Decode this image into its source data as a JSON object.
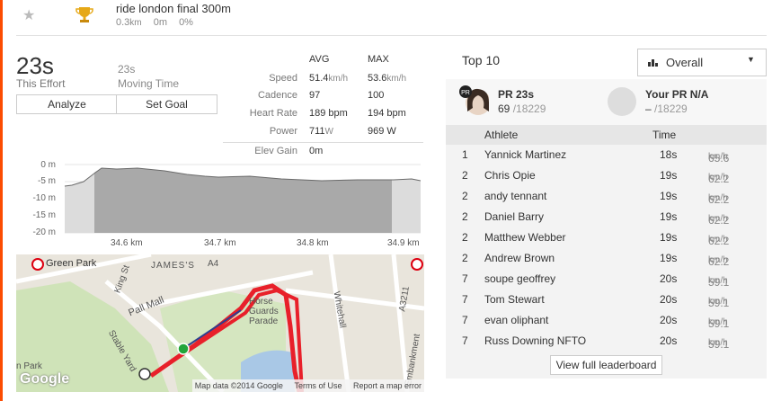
{
  "segment": {
    "title": "ride london final 300m",
    "distance_value": "0.3",
    "distance_unit": "km",
    "elevation_value": "0",
    "elevation_unit": "m",
    "grade": "0%"
  },
  "effort": {
    "time": "23s",
    "time_label": "This Effort",
    "moving_time": "23s",
    "moving_label": "Moving Time",
    "analyze_label": "Analyze",
    "set_goal_label": "Set Goal"
  },
  "stats": {
    "avg_header": "AVG",
    "max_header": "MAX",
    "rows": [
      {
        "label": "Speed",
        "avg": "51.4",
        "avg_unit": "km/h",
        "max": "53.6",
        "max_unit": "km/h"
      },
      {
        "label": "Cadence",
        "avg": "97",
        "avg_unit": "",
        "max": "100",
        "max_unit": ""
      },
      {
        "label": "Heart Rate",
        "avg": "189 bpm",
        "avg_unit": "",
        "max": "194 bpm",
        "max_unit": ""
      },
      {
        "label": "Power",
        "avg": "711",
        "avg_unit": "W",
        "max": "969 W",
        "max_unit": ""
      },
      {
        "label": "Elev Gain",
        "avg": "0m",
        "avg_unit": "",
        "max": "",
        "max_unit": ""
      }
    ]
  },
  "elevation_chart": {
    "y_ticks": [
      "0 m",
      "-5 m",
      "-10 m",
      "-15 m",
      "-20 m"
    ],
    "x_ticks": [
      "34.6 km",
      "34.7 km",
      "34.8 km",
      "34.9 km"
    ]
  },
  "map": {
    "labels": [
      "Green Park",
      "JAMES'S",
      "King St",
      "Pall Mall",
      "A4",
      "Horse Guards Parade",
      "Whitehall",
      "Stable Yard",
      "A3211",
      "Embankment",
      "n Park"
    ],
    "google": "Google",
    "copyright": "Map data ©2014 Google",
    "terms": "Terms of Use",
    "report": "Report a map error"
  },
  "leaderboard": {
    "title": "Top 10",
    "filter": "Overall",
    "pr_label": "PR 23s",
    "pr_rank": "69",
    "pr_total": "/18229",
    "your_pr_label": "Your PR N/A",
    "your_pr_rank": "–",
    "your_pr_total": "/18229",
    "col_athlete": "Athlete",
    "col_time": "Time",
    "rows": [
      {
        "rank": "1",
        "name": "Yannick Martinez",
        "time": "18s",
        "speed": "65.6",
        "unit": "km/h"
      },
      {
        "rank": "2",
        "name": "Chris Opie",
        "time": "19s",
        "speed": "62.2",
        "unit": "km/h"
      },
      {
        "rank": "2",
        "name": "andy tennant",
        "time": "19s",
        "speed": "62.2",
        "unit": "km/h"
      },
      {
        "rank": "2",
        "name": "Daniel Barry",
        "time": "19s",
        "speed": "62.2",
        "unit": "km/h"
      },
      {
        "rank": "2",
        "name": "Matthew Webber",
        "time": "19s",
        "speed": "62.2",
        "unit": "km/h"
      },
      {
        "rank": "2",
        "name": "Andrew Brown",
        "time": "19s",
        "speed": "62.2",
        "unit": "km/h"
      },
      {
        "rank": "7",
        "name": "soupe geoffrey",
        "time": "20s",
        "speed": "59.1",
        "unit": "km/h"
      },
      {
        "rank": "7",
        "name": "Tom Stewart",
        "time": "20s",
        "speed": "59.1",
        "unit": "km/h"
      },
      {
        "rank": "7",
        "name": "evan oliphant",
        "time": "20s",
        "speed": "59.1",
        "unit": "km/h"
      },
      {
        "rank": "7",
        "name": "Russ Downing NFTO",
        "time": "20s",
        "speed": "59.1",
        "unit": "km/h"
      }
    ],
    "view_full": "View full leaderboard"
  },
  "colors": {
    "accent": "#fc4c02",
    "trophy": "#e6a817",
    "route": "#e8202a",
    "start": "#22a53a"
  }
}
